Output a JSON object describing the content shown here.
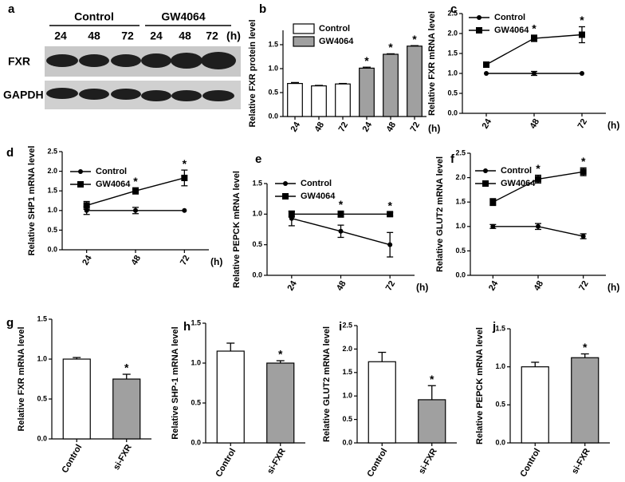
{
  "blot": {
    "panel": "a",
    "groups": [
      "Control",
      "GW4064"
    ],
    "times": [
      "24",
      "48",
      "72",
      "24",
      "48",
      "72"
    ],
    "unit": "(h)",
    "rows": [
      "FXR",
      "GAPDH"
    ]
  },
  "chart_data": [
    {
      "type": "bar",
      "panel": "b",
      "ylabel": "Relative FXR  protein level",
      "xlabel": "(h)",
      "categories": [
        "24",
        "48",
        "72",
        "24",
        "48",
        "72"
      ],
      "series": [
        {
          "name": "Control",
          "color": "#ffffff",
          "values": [
            0.69,
            0.64,
            0.68,
            null,
            null,
            null
          ],
          "errors": [
            0.02,
            0.01,
            0.01,
            null,
            null,
            null
          ],
          "significance": [
            null,
            null,
            null,
            null,
            null,
            null
          ]
        },
        {
          "name": "GW4064",
          "color": "#a0a0a0",
          "values": [
            null,
            null,
            null,
            1.01,
            1.3,
            1.47
          ],
          "errors": [
            null,
            null,
            null,
            0.02,
            0.01,
            0.01
          ],
          "significance": [
            null,
            null,
            null,
            "*",
            "*",
            "*"
          ]
        }
      ],
      "ylim": [
        0,
        1.8
      ],
      "yticks": [
        {
          "value": 0,
          "label": "0.0"
        },
        {
          "value": 0.5,
          "label": "0.5"
        },
        {
          "value": 1,
          "label": "1.0"
        },
        {
          "value": 1.5,
          "label": "1.5"
        }
      ]
    },
    {
      "type": "line",
      "panel": "c",
      "ylabel": "Relative FXR mRNA level",
      "xlabel": "(h)",
      "categories": [
        "24",
        "48",
        "72"
      ],
      "series": [
        {
          "name": "Control",
          "color": "#000000",
          "marker": "circle",
          "values": [
            1,
            1,
            1
          ],
          "errors": [
            0,
            0.05,
            0
          ],
          "significance": [
            null,
            null,
            null
          ]
        },
        {
          "name": "GW4064",
          "color": "#000000",
          "marker": "square",
          "values": [
            1.22,
            1.88,
            1.97
          ],
          "errors": [
            0.04,
            0.08,
            0.2
          ],
          "significance": [
            null,
            "*",
            "*"
          ]
        }
      ],
      "ylim": [
        0,
        2.5
      ],
      "yticks": [
        {
          "value": 0,
          "label": "0.0"
        },
        {
          "value": 0.5,
          "label": "0.5"
        },
        {
          "value": 1,
          "label": "1.0"
        },
        {
          "value": 1.5,
          "label": "1.5"
        },
        {
          "value": 2,
          "label": "2.0"
        },
        {
          "value": 2.5,
          "label": "2.5"
        }
      ]
    },
    {
      "type": "line",
      "panel": "d",
      "ylabel": "Relative SHP1 mRNA level",
      "xlabel": "(h)",
      "categories": [
        "24",
        "48",
        "72"
      ],
      "series": [
        {
          "name": "Control",
          "color": "#000000",
          "marker": "circle",
          "values": [
            1,
            1,
            1
          ],
          "errors": [
            0.1,
            0.08,
            0
          ],
          "significance": [
            null,
            null,
            null
          ]
        },
        {
          "name": "GW4064",
          "color": "#000000",
          "marker": "square",
          "values": [
            1.13,
            1.5,
            1.83
          ],
          "errors": [
            0.1,
            0.08,
            0.2
          ],
          "significance": [
            null,
            "*",
            "*"
          ]
        }
      ],
      "ylim": [
        0,
        2.5
      ],
      "yticks": [
        {
          "value": 0,
          "label": "0.0"
        },
        {
          "value": 0.5,
          "label": "0.5"
        },
        {
          "value": 1,
          "label": "1.0"
        },
        {
          "value": 1.5,
          "label": "1.5"
        },
        {
          "value": 2,
          "label": "2.0"
        },
        {
          "value": 2.5,
          "label": "2.5"
        }
      ]
    },
    {
      "type": "line",
      "panel": "e",
      "ylabel": "Relative PEPCK mRNA level",
      "xlabel": "(h)",
      "categories": [
        "24",
        "48",
        "72"
      ],
      "series": [
        {
          "name": "Control",
          "color": "#000000",
          "marker": "circle",
          "values": [
            0.93,
            0.72,
            0.5
          ],
          "errors": [
            0.12,
            0.1,
            0.2
          ],
          "significance": [
            null,
            null,
            null
          ]
        },
        {
          "name": "GW4064",
          "color": "#000000",
          "marker": "square",
          "values": [
            1,
            1,
            1
          ],
          "errors": [
            0.05,
            0.05,
            0.03
          ],
          "significance": [
            null,
            "*",
            "*"
          ]
        }
      ],
      "ylim": [
        0,
        1.5
      ],
      "yticks": [
        {
          "value": 0,
          "label": "0.0"
        },
        {
          "value": 0.5,
          "label": "0.5"
        },
        {
          "value": 1,
          "label": "1.0"
        },
        {
          "value": 1.5,
          "label": "1.5"
        }
      ]
    },
    {
      "type": "line",
      "panel": "f",
      "ylabel": "Relative GLUT2 mRNA level",
      "xlabel": "(h)",
      "categories": [
        "24",
        "48",
        "72"
      ],
      "series": [
        {
          "name": "Control",
          "color": "#000000",
          "marker": "circle",
          "values": [
            1,
            1,
            0.8
          ],
          "errors": [
            0.04,
            0.06,
            0.05
          ],
          "significance": [
            null,
            null,
            null
          ]
        },
        {
          "name": "GW4064",
          "color": "#000000",
          "marker": "square",
          "values": [
            1.5,
            1.97,
            2.12
          ],
          "errors": [
            0.07,
            0.08,
            0.08
          ],
          "significance": [
            null,
            "*",
            "*"
          ]
        }
      ],
      "ylim": [
        0,
        2.5
      ],
      "yticks": [
        {
          "value": 0,
          "label": "0.0"
        },
        {
          "value": 0.5,
          "label": "0.5"
        },
        {
          "value": 1,
          "label": "1.0"
        },
        {
          "value": 1.5,
          "label": "1.5"
        },
        {
          "value": 2,
          "label": "2.0"
        },
        {
          "value": 2.5,
          "label": "2.5"
        }
      ]
    },
    {
      "type": "bar",
      "panel": "g",
      "ylabel": "Relative FXR mRNA level",
      "categories": [
        "Control",
        "si-FXR"
      ],
      "series": [
        {
          "colors": [
            "#ffffff",
            "#a0a0a0"
          ],
          "values": [
            1.0,
            0.75
          ],
          "errors": [
            0.02,
            0.06
          ],
          "significance": [
            null,
            "*"
          ]
        }
      ],
      "ylim": [
        0,
        1.5
      ],
      "yticks": [
        {
          "value": 0,
          "label": "0.0"
        },
        {
          "value": 0.5,
          "label": "0.5"
        },
        {
          "value": 1,
          "label": "1.0"
        },
        {
          "value": 1.5,
          "label": "1.5"
        }
      ]
    },
    {
      "type": "bar",
      "panel": "h",
      "ylabel": "Relative SHP-1 mRNA level",
      "categories": [
        "Control",
        "si-FXR"
      ],
      "series": [
        {
          "colors": [
            "#ffffff",
            "#a0a0a0"
          ],
          "values": [
            1.15,
            1.0
          ],
          "errors": [
            0.1,
            0.03
          ],
          "significance": [
            null,
            "*"
          ]
        }
      ],
      "ylim": [
        0,
        1.5
      ],
      "yticks": [
        {
          "value": 0,
          "label": "0.0"
        },
        {
          "value": 0.5,
          "label": "0.5"
        },
        {
          "value": 1,
          "label": "1.0"
        },
        {
          "value": 1.5,
          "label": "1.5"
        }
      ]
    },
    {
      "type": "bar",
      "panel": "i",
      "ylabel": "Relative GLUT2 mRNA level",
      "categories": [
        "Control",
        "si-FXR"
      ],
      "series": [
        {
          "colors": [
            "#ffffff",
            "#a0a0a0"
          ],
          "values": [
            1.73,
            0.92
          ],
          "errors": [
            0.2,
            0.3
          ],
          "significance": [
            null,
            "*"
          ]
        }
      ],
      "ylim": [
        0,
        2.5
      ],
      "yticks": [
        {
          "value": 0,
          "label": "0.0"
        },
        {
          "value": 0.5,
          "label": "0.5"
        },
        {
          "value": 1,
          "label": "1.0"
        },
        {
          "value": 1.5,
          "label": "1.5"
        },
        {
          "value": 2,
          "label": "2.0"
        },
        {
          "value": 2.5,
          "label": "2.5"
        }
      ]
    },
    {
      "type": "bar",
      "panel": "j",
      "ylabel": "Relative PEPCK mRNA level",
      "categories": [
        "Control",
        "si-FXR"
      ],
      "series": [
        {
          "colors": [
            "#ffffff",
            "#a0a0a0"
          ],
          "values": [
            1.0,
            1.12
          ],
          "errors": [
            0.06,
            0.05
          ],
          "significance": [
            null,
            "*"
          ]
        }
      ],
      "ylim": [
        0,
        1.5
      ],
      "yticks": [
        {
          "value": 0,
          "label": "0.0"
        },
        {
          "value": 0.5,
          "label": "0.5"
        },
        {
          "value": 1,
          "label": "1.0"
        },
        {
          "value": 1.5,
          "label": "1.5"
        }
      ]
    }
  ]
}
